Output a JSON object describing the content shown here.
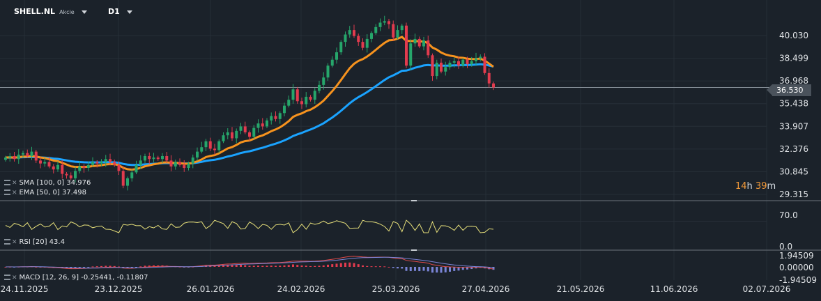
{
  "header": {
    "symbol": "SHELL.NL",
    "market": "Akcie",
    "timeframe": "D1"
  },
  "timer": {
    "hours": "14",
    "h_unit": "h",
    "minutes": "39",
    "m_unit": "m"
  },
  "current_price": "36.530",
  "indicators": {
    "sma": "SMA [100, 0] 34.976",
    "ema": "EMA [50, 0] 37.498",
    "rsi": "RSI [20] 43.4",
    "macd": "MACD [12, 26, 9] -0.25441, -0.11807"
  },
  "colors": {
    "background": "#1b222a",
    "bull": "#26a66b",
    "bear": "#e23b4e",
    "sma": "#1aa3ff",
    "ema": "#f7931e",
    "rsi": "#e6df7a",
    "macd_line": "#e04a4a",
    "signal_line": "#7a84d6"
  },
  "chart_data": [
    {
      "type": "candlestick",
      "x_ticks": [
        "24.11.2025",
        "23.12.2025",
        "26.01.2026",
        "24.02.2026",
        "25.03.2026",
        "27.04.2026",
        "21.05.2026",
        "11.06.2026",
        "02.07.2026"
      ],
      "y_ticks": [
        "40.030",
        "38.499",
        "36.968",
        "35.438",
        "33.907",
        "32.376",
        "30.845",
        "29.315"
      ],
      "ylim": [
        29.315,
        41.5
      ],
      "close": [
        31.8,
        31.9,
        31.7,
        32.0,
        32.1,
        31.9,
        32.2,
        31.6,
        31.4,
        31.5,
        31.2,
        31.0,
        31.3,
        30.7,
        30.6,
        30.4,
        30.9,
        31.2,
        31.1,
        31.3,
        31.5,
        31.4,
        31.5,
        31.7,
        31.5,
        31.3,
        30.9,
        29.9,
        30.4,
        30.8,
        31.3,
        31.6,
        31.9,
        31.7,
        31.8,
        31.7,
        31.9,
        31.6,
        31.2,
        31.5,
        31.3,
        31.1,
        31.4,
        31.8,
        32.2,
        32.5,
        32.9,
        32.4,
        32.3,
        32.9,
        33.3,
        33.5,
        33.1,
        33.6,
        33.9,
        33.5,
        33.2,
        33.8,
        34.1,
        33.9,
        34.3,
        34.6,
        34.4,
        34.8,
        35.3,
        35.7,
        36.4,
        35.6,
        35.4,
        35.9,
        35.7,
        36.3,
        36.7,
        37.2,
        38.0,
        38.4,
        38.9,
        39.6,
        40.1,
        40.4,
        40.0,
        39.6,
        39.2,
        39.8,
        40.2,
        40.6,
        40.9,
        41.0,
        40.8,
        39.9,
        40.4,
        40.7,
        38.0,
        39.5,
        39.8,
        39.3,
        39.7,
        38.7,
        37.3,
        38.2,
        37.6,
        37.9,
        38.2,
        38.3,
        38.0,
        38.4,
        38.1,
        38.3,
        38.5,
        38.6,
        37.5,
        36.8,
        36.53
      ],
      "sma": {
        "name": "SMA [100, 0] 34.976",
        "last": 34.976
      },
      "ema": {
        "name": "EMA [50, 0] 37.498",
        "last": 37.498
      }
    },
    {
      "type": "line",
      "name": "RSI [20] 43.4",
      "y_ticks": [
        "70.0",
        "0.0"
      ],
      "ylim": [
        0,
        100
      ],
      "last": 43.4
    },
    {
      "type": "bar",
      "name": "MACD [12, 26, 9] -0.25441, -0.11807",
      "y_ticks": [
        "1.94509",
        "0.00000",
        "-1.94509"
      ],
      "ylim": [
        -1.94509,
        1.94509
      ],
      "macd_last": -0.25441,
      "signal_last": -0.11807
    }
  ]
}
